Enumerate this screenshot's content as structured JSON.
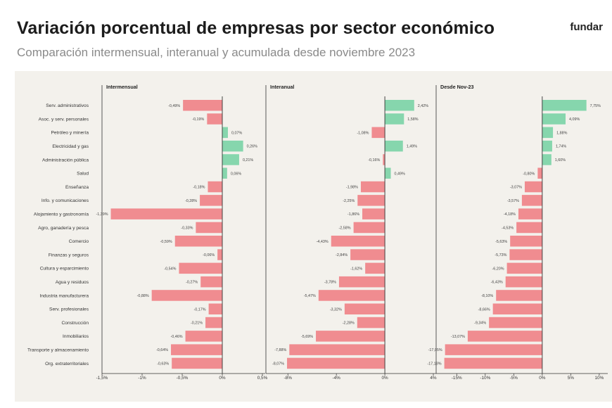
{
  "header": {
    "title": "Variación porcentual de empresas por sector económico",
    "subtitle": "Comparación intermensual, interanual y acumulada desde noviembre 2023",
    "brand": "fundar"
  },
  "colors": {
    "positive": "#86d6ad",
    "negative": "#f08c90",
    "panel_bg": "#f3f1ec",
    "axis": "#333333"
  },
  "chart_data": {
    "type": "bar",
    "orientation": "horizontal",
    "categories": [
      "Serv. administrativos",
      "Asoc. y serv. personales",
      "Petróleo y minería",
      "Electricidad y gas",
      "Administración pública",
      "Salud",
      "Enseñanza",
      "Info. y comunicaciones",
      "Alojamiento y gastronomía",
      "Agro, ganadería y pesca",
      "Comercio",
      "Finanzas y seguros",
      "Cultura y esparcimiento",
      "Agua y residuos",
      "Industria manufacturera",
      "Serv. profesionales",
      "Construcción",
      "Inmobiliarios",
      "Transporte y almacenamiento",
      "Org. extraterritoriales"
    ],
    "panels": [
      {
        "title": "Intermensual",
        "xlim": [
          -1.5,
          0.5
        ],
        "ticks": [
          -1.5,
          -1,
          -0.5,
          0,
          0.5
        ],
        "tick_labels": [
          "-1,5%",
          "-1%",
          "-0,5%",
          "0%",
          "0,5%"
        ],
        "values": [
          -0.49,
          -0.19,
          0.07,
          0.26,
          0.21,
          0.06,
          -0.18,
          -0.28,
          -1.39,
          -0.33,
          -0.59,
          -0.06,
          -0.54,
          -0.27,
          -0.88,
          -0.17,
          -0.21,
          -0.46,
          -0.64,
          -0.63
        ],
        "value_labels": [
          "-0,49%",
          "-0,19%",
          "0,07%",
          "0,26%",
          "0,21%",
          "0,06%",
          "-0,18%",
          "-0,28%",
          "-1,39%",
          "-0,33%",
          "-0,59%",
          "-0,06%",
          "-0,54%",
          "-0,27%",
          "-0,88%",
          "-0,17%",
          "-0,21%",
          "-0,46%",
          "-0,64%",
          "-0,63%"
        ]
      },
      {
        "title": "Interanual",
        "xlim": [
          -9,
          4
        ],
        "ticks": [
          -8,
          -4,
          0,
          4
        ],
        "tick_labels": [
          "-8%",
          "-4%",
          "0%",
          "4%"
        ],
        "values": [
          2.42,
          1.58,
          -1.08,
          1.49,
          -0.16,
          0.49,
          -1.98,
          -2.25,
          -1.86,
          -2.58,
          -4.43,
          -2.84,
          -1.62,
          -3.78,
          -5.47,
          -3.32,
          -2.28,
          -5.69,
          -7.88,
          -8.07
        ],
        "value_labels": [
          "2,42%",
          "1,58%",
          "-1,08%",
          "1,49%",
          "-0,16%",
          "0,49%",
          "-1,98%",
          "-2,25%",
          "-1,86%",
          "-2,58%",
          "-4,43%",
          "-2,84%",
          "-1,62%",
          "-3,78%",
          "-5,47%",
          "-3,32%",
          "-2,28%",
          "-5,69%",
          "-7,88%",
          "-8,07%"
        ]
      },
      {
        "title": "Desde Nov-23",
        "xlim": [
          -17.5,
          11
        ],
        "ticks": [
          -15,
          -10,
          -5,
          0,
          5,
          10
        ],
        "tick_labels": [
          "-15%",
          "-10%",
          "-5%",
          "0%",
          "5%",
          "10%"
        ],
        "values": [
          7.75,
          4.09,
          1.88,
          1.74,
          1.6,
          -0.8,
          -3.07,
          -3.57,
          -4.18,
          -4.53,
          -5.63,
          -5.73,
          -6.2,
          -6.43,
          -8.1,
          -8.66,
          -9.34,
          -13.07,
          -17.05,
          -17.18
        ],
        "value_labels": [
          "7,75%",
          "4,09%",
          "1,88%",
          "1,74%",
          "1,60%",
          "-0,80%",
          "-3,07%",
          "-3,57%",
          "-4,18%",
          "-4,53%",
          "-5,63%",
          "-5,73%",
          "-6,20%",
          "-6,43%",
          "-8,10%",
          "-8,66%",
          "-9,34%",
          "-13,07%",
          "-17,05%",
          "-17,18%"
        ]
      }
    ]
  }
}
